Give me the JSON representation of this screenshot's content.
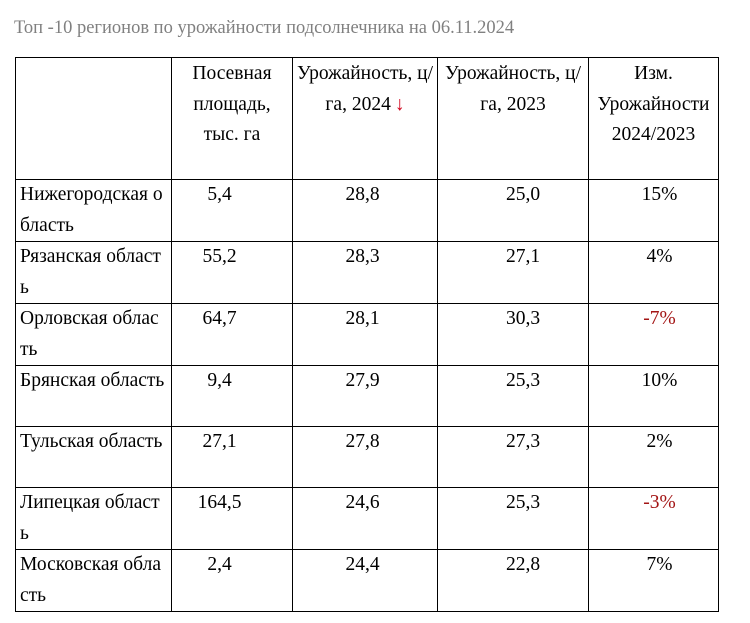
{
  "title": "Топ -10 регионов по урожайности подсолнечника на 06.11.2024",
  "colors": {
    "title": "#808080",
    "negative": "#a31515",
    "sort_arrow": "#d0021b"
  },
  "table": {
    "headers": {
      "region": "",
      "area": "Посевная площадь, тыс. га",
      "yield_2024": "Урожайность, ц/га, 2024",
      "sort_arrow": "↓",
      "yield_2023": "Урожайность, ц/га, 2023",
      "change": "Изм. Урожайности 2024/2023"
    },
    "rows": [
      {
        "region": "Нижегородская область",
        "area": "5,4",
        "yield_2024": "28,8",
        "yield_2023": "25,0",
        "change": "15%",
        "negative": false
      },
      {
        "region": "Рязанская область",
        "area": "55,2",
        "yield_2024": "28,3",
        "yield_2023": "27,1",
        "change": "4%",
        "negative": false
      },
      {
        "region": "Орловская область",
        "area": "64,7",
        "yield_2024": "28,1",
        "yield_2023": "30,3",
        "change": "-7%",
        "negative": true
      },
      {
        "region": "Брянская область",
        "area": "9,4",
        "yield_2024": "27,9",
        "yield_2023": "25,3",
        "change": "10%",
        "negative": false
      },
      {
        "region": "Тульская область",
        "area": "27,1",
        "yield_2024": "27,8",
        "yield_2023": "27,3",
        "change": "2%",
        "negative": false
      },
      {
        "region": "Липецкая область",
        "area": "164,5",
        "yield_2024": "24,6",
        "yield_2023": "25,3",
        "change": "-3%",
        "negative": true
      },
      {
        "region": "Московская область",
        "area": "2,4",
        "yield_2024": "24,4",
        "yield_2023": "22,8",
        "change": "7%",
        "negative": false
      }
    ]
  }
}
